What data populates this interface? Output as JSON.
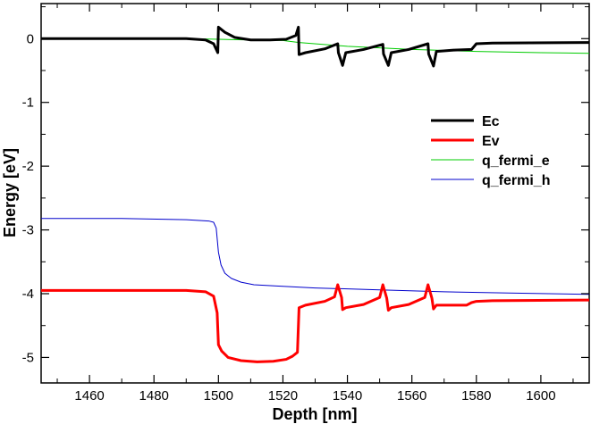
{
  "chart_data": {
    "type": "line",
    "xlabel": "Depth [nm]",
    "ylabel": "Energy [eV]",
    "xlim": [
      1445,
      1615
    ],
    "ylim": [
      -5.4,
      0.55
    ],
    "xticks": [
      1460,
      1480,
      1500,
      1520,
      1540,
      1560,
      1580,
      1600
    ],
    "yticks": [
      0,
      -1,
      -2,
      -3,
      -4,
      -5
    ],
    "grid": false,
    "legend_position": "right",
    "series": [
      {
        "name": "Ec",
        "color": "#000000",
        "line_width": 3,
        "points": [
          [
            1445,
            0.0
          ],
          [
            1490,
            0.0
          ],
          [
            1496,
            -0.02
          ],
          [
            1498.5,
            -0.08
          ],
          [
            1499.8,
            -0.22
          ],
          [
            1500,
            0.18
          ],
          [
            1502,
            0.1
          ],
          [
            1505,
            0.02
          ],
          [
            1510,
            -0.02
          ],
          [
            1516,
            -0.02
          ],
          [
            1521,
            -0.01
          ],
          [
            1524,
            0.05
          ],
          [
            1524.8,
            0.18
          ],
          [
            1525,
            -0.25
          ],
          [
            1527,
            -0.22
          ],
          [
            1533,
            -0.16
          ],
          [
            1537,
            -0.08
          ],
          [
            1537.2,
            -0.22
          ],
          [
            1538.5,
            -0.42
          ],
          [
            1539.5,
            -0.22
          ],
          [
            1545,
            -0.17
          ],
          [
            1551,
            -0.09
          ],
          [
            1551.2,
            -0.24
          ],
          [
            1552.7,
            -0.42
          ],
          [
            1553.6,
            -0.22
          ],
          [
            1559,
            -0.17
          ],
          [
            1565,
            -0.08
          ],
          [
            1565.2,
            -0.24
          ],
          [
            1566.7,
            -0.43
          ],
          [
            1567.6,
            -0.2
          ],
          [
            1573,
            -0.18
          ],
          [
            1578.5,
            -0.17
          ],
          [
            1580,
            -0.08
          ],
          [
            1585,
            -0.07
          ],
          [
            1615,
            -0.06
          ]
        ]
      },
      {
        "name": "Ev",
        "color": "#ff0000",
        "line_width": 3,
        "points": [
          [
            1445,
            -3.95
          ],
          [
            1490,
            -3.95
          ],
          [
            1496,
            -3.97
          ],
          [
            1498.5,
            -4.04
          ],
          [
            1499.6,
            -4.3
          ],
          [
            1500,
            -4.8
          ],
          [
            1501,
            -4.9
          ],
          [
            1503,
            -5.0
          ],
          [
            1507,
            -5.05
          ],
          [
            1512,
            -5.07
          ],
          [
            1517,
            -5.06
          ],
          [
            1521,
            -5.03
          ],
          [
            1523,
            -4.98
          ],
          [
            1524.5,
            -4.92
          ],
          [
            1525,
            -4.22
          ],
          [
            1527,
            -4.18
          ],
          [
            1533,
            -4.12
          ],
          [
            1536,
            -4.05
          ],
          [
            1537,
            -3.86
          ],
          [
            1538.2,
            -4.06
          ],
          [
            1538.5,
            -4.25
          ],
          [
            1539.5,
            -4.22
          ],
          [
            1545,
            -4.17
          ],
          [
            1550,
            -4.06
          ],
          [
            1551,
            -3.86
          ],
          [
            1552.2,
            -4.07
          ],
          [
            1552.7,
            -4.26
          ],
          [
            1553.6,
            -4.22
          ],
          [
            1559,
            -4.17
          ],
          [
            1564,
            -4.06
          ],
          [
            1565,
            -3.86
          ],
          [
            1566.2,
            -4.07
          ],
          [
            1566.7,
            -4.24
          ],
          [
            1567.6,
            -4.18
          ],
          [
            1573,
            -4.18
          ],
          [
            1577,
            -4.18
          ],
          [
            1578.5,
            -4.14
          ],
          [
            1580,
            -4.12
          ],
          [
            1585,
            -4.11
          ],
          [
            1615,
            -4.1
          ]
        ]
      },
      {
        "name": "q_fermi_e",
        "color": "#00cc00",
        "line_width": 1,
        "points": [
          [
            1445,
            0.0
          ],
          [
            1490,
            0.0
          ],
          [
            1500,
            -0.01
          ],
          [
            1510,
            -0.02
          ],
          [
            1520,
            -0.03
          ],
          [
            1525,
            -0.06
          ],
          [
            1540,
            -0.12
          ],
          [
            1560,
            -0.17
          ],
          [
            1580,
            -0.2
          ],
          [
            1600,
            -0.22
          ],
          [
            1615,
            -0.23
          ]
        ]
      },
      {
        "name": "q_fermi_h",
        "color": "#0000cc",
        "line_width": 1,
        "points": [
          [
            1445,
            -2.82
          ],
          [
            1470,
            -2.82
          ],
          [
            1490,
            -2.84
          ],
          [
            1497,
            -2.86
          ],
          [
            1498.5,
            -2.88
          ],
          [
            1499.3,
            -2.97
          ],
          [
            1500,
            -3.35
          ],
          [
            1500.8,
            -3.55
          ],
          [
            1502,
            -3.68
          ],
          [
            1504,
            -3.76
          ],
          [
            1507,
            -3.82
          ],
          [
            1511,
            -3.86
          ],
          [
            1518,
            -3.88
          ],
          [
            1530,
            -3.91
          ],
          [
            1550,
            -3.94
          ],
          [
            1570,
            -3.97
          ],
          [
            1590,
            -3.99
          ],
          [
            1615,
            -4.01
          ]
        ]
      }
    ]
  }
}
